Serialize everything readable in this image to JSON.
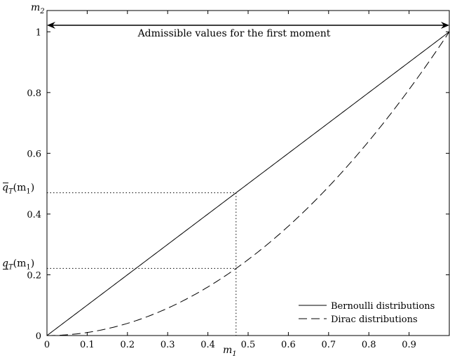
{
  "chart_data": {
    "type": "line",
    "title": "",
    "xlabel": "m1",
    "ylabel": "m2",
    "xlim": [
      0,
      1
    ],
    "ylim": [
      0,
      1.07
    ],
    "x_ticks": [
      "0",
      "0.1",
      "0.2",
      "0.3",
      "0.4",
      "0.5",
      "0.6",
      "0.7",
      "0.8",
      "0.9"
    ],
    "y_ticks": [
      "0",
      "0.2",
      "0.4",
      "0.6",
      "0.8",
      "1"
    ],
    "grid": false,
    "legend_position": "bottom-right",
    "series": [
      {
        "name": "Bernoulli distributions",
        "style": "solid",
        "formula": "m2 = m1",
        "x": [
          0,
          0.1,
          0.2,
          0.3,
          0.4,
          0.5,
          0.6,
          0.7,
          0.8,
          0.9,
          1
        ],
        "y": [
          0,
          0.1,
          0.2,
          0.3,
          0.4,
          0.5,
          0.6,
          0.7,
          0.8,
          0.9,
          1
        ]
      },
      {
        "name": "Dirac distributions",
        "style": "dashed",
        "formula": "m2 = m1^2",
        "x": [
          0,
          0.1,
          0.2,
          0.3,
          0.4,
          0.5,
          0.6,
          0.7,
          0.8,
          0.9,
          1
        ],
        "y": [
          0,
          0.01,
          0.04,
          0.09,
          0.16,
          0.25,
          0.36,
          0.49,
          0.64,
          0.81,
          1
        ]
      }
    ],
    "annotations": {
      "range_arrow": {
        "text": "Admissible values for the first moment",
        "x_from": 0,
        "x_to": 1,
        "y": 1.07
      },
      "marker_x": 0.47,
      "upper_label": "q̄_T(m_1)",
      "upper_value": 0.47,
      "lower_label": "q_T(m_1)",
      "lower_value": 0.2209
    }
  }
}
